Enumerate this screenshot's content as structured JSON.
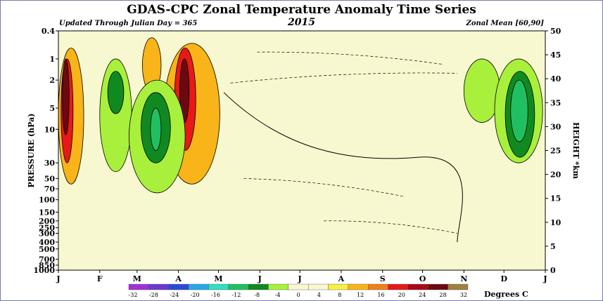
{
  "chart_data": {
    "type": "heatmap",
    "title": "GDAS-CPC Zonal Temperature Anomaly Time Series",
    "year": "2015",
    "subtitle_left": "Updated Through Julian Day = 365",
    "subtitle_right": "Zonal Mean [60,90]",
    "ylabel": "PRESSURE (hPa)",
    "y2label": "HEIGHT *km",
    "pressure_ticks": [
      "0.4",
      "1",
      "2",
      "5",
      "10",
      "30",
      "50",
      "70",
      "100",
      "150",
      "200",
      "250",
      "300",
      "400",
      "500",
      "700",
      "850",
      "1000"
    ],
    "pressure_values": [
      0.4,
      1,
      2,
      5,
      10,
      30,
      50,
      70,
      100,
      150,
      200,
      250,
      300,
      400,
      500,
      700,
      850,
      1000
    ],
    "height_ticks": [
      "50",
      "45",
      "40",
      "35",
      "30",
      "25",
      "20",
      "15",
      "10",
      "5",
      "0"
    ],
    "height_values": [
      50,
      45,
      40,
      35,
      30,
      25,
      20,
      15,
      10,
      5,
      0
    ],
    "month_labels": [
      "J",
      "F",
      "M",
      "A",
      "M",
      "J",
      "J",
      "A",
      "S",
      "O",
      "N",
      "D",
      "J"
    ],
    "month_start_day": [
      1,
      32,
      60,
      91,
      121,
      152,
      182,
      213,
      244,
      274,
      305,
      335,
      366
    ],
    "xlim": [
      1,
      366
    ],
    "ylim_pressure": [
      0.4,
      1000
    ],
    "ylim_height": [
      0,
      50
    ],
    "colorbar_label": "Degrees C",
    "colorbar_ticks": [
      "-32",
      "-28",
      "-24",
      "-20",
      "-16",
      "-12",
      "-8",
      "-4",
      "0",
      "4",
      "8",
      "12",
      "16",
      "20",
      "24",
      "28",
      "32"
    ],
    "colorbar_colors": [
      "#a030d8",
      "#6a3ad0",
      "#2a4ad8",
      "#28a8e8",
      "#30e0c0",
      "#20c060",
      "#108a20",
      "#a8f03c",
      "#f8f8d0",
      "#f8f8d0",
      "#f8f040",
      "#f8b418",
      "#f08018",
      "#e81818",
      "#a80818",
      "#6a0a10",
      "#a08040"
    ],
    "anomaly_regions": [
      {
        "level": "8",
        "day_range": [
          1,
          20
        ],
        "p_range": [
          0.7,
          60
        ]
      },
      {
        "level": "16",
        "day_range": [
          3,
          12
        ],
        "p_range": [
          1,
          30
        ]
      },
      {
        "level": "24",
        "day_range": [
          4,
          9
        ],
        "p_range": [
          1,
          12
        ]
      },
      {
        "level": "8",
        "day_range": [
          64,
          78
        ],
        "p_range": [
          0.5,
          3
        ]
      },
      {
        "level": "8",
        "day_range": [
          80,
          122
        ],
        "p_range": [
          0.6,
          60
        ]
      },
      {
        "level": "16",
        "day_range": [
          88,
          104
        ],
        "p_range": [
          0.7,
          20
        ]
      },
      {
        "level": "24",
        "day_range": [
          92,
          99
        ],
        "p_range": [
          1,
          8
        ]
      },
      {
        "level": "-4",
        "day_range": [
          32,
          56
        ],
        "p_range": [
          1,
          40
        ]
      },
      {
        "level": "-8",
        "day_range": [
          38,
          50
        ],
        "p_range": [
          1.5,
          6
        ]
      },
      {
        "level": "-4",
        "day_range": [
          54,
          96
        ],
        "p_range": [
          2,
          80
        ]
      },
      {
        "level": "-8",
        "day_range": [
          63,
          85
        ],
        "p_range": [
          3,
          30
        ]
      },
      {
        "level": "-12",
        "day_range": [
          70,
          78
        ],
        "p_range": [
          5,
          20
        ]
      },
      {
        "level": "-4",
        "day_range": [
          305,
          332
        ],
        "p_range": [
          1,
          8
        ]
      },
      {
        "level": "-4",
        "day_range": [
          328,
          364
        ],
        "p_range": [
          1,
          30
        ]
      },
      {
        "level": "-8",
        "day_range": [
          336,
          358
        ],
        "p_range": [
          1.5,
          25
        ]
      },
      {
        "level": "-12",
        "day_range": [
          340,
          353
        ],
        "p_range": [
          2,
          15
        ]
      }
    ]
  }
}
